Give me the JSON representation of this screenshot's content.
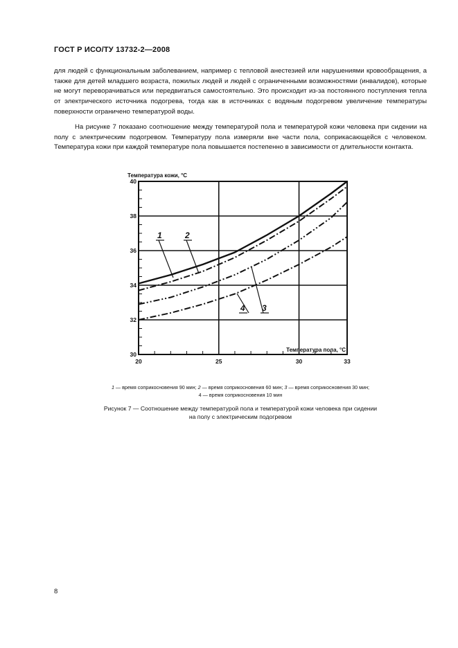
{
  "document": {
    "header": "ГОСТ Р ИСО/ТУ 13732-2—2008",
    "paragraph1": "для людей с функциональным заболеванием, например с тепловой анестезией или нарушениями кровообращения, а также для детей младшего возраста, пожилых людей и людей с ограниченными возможностями (инвалидов), которые не могут переворачиваться или передвигаться самостоятельно. Это происходит из-за постоянного поступления тепла от электрического источника подогрева, тогда как в источниках с водяным подогревом увеличение температуры поверхности ограничено температурой воды.",
    "paragraph2": "На рисунке 7 показано соотношение между температурой пола и температурой кожи человека при сидении на полу с электрическим подогревом. Температуру пола измеряли вне части пола, соприкасающейся с человеком. Температура кожи при каждой температуре пола повышается постепенно в зависимости от длительности контакта.",
    "legend": {
      "item1_num": "1",
      "item1_text": " — время соприкосновения 90 мин; ",
      "item2_num": "2",
      "item2_text": " — время соприкосновения 60 мин; ",
      "item3_num": "3",
      "item3_text": " — время соприкосновения 30 мин;",
      "item4_num": "4",
      "item4_text": " — время соприкосновения 10 мин"
    },
    "caption_line1": "Рисунок 7 — Соотношение между температурой пола и температурой кожи человека при сидении",
    "caption_line2": "на полу с электрическим подогревом",
    "page_number": "8"
  },
  "chart_data": {
    "type": "line",
    "ylabel": "Температура кожи, °С",
    "xlabel": "Температура пола, °С",
    "xlim": [
      20,
      33
    ],
    "ylim": [
      30,
      40
    ],
    "x_ticks": [
      20,
      25,
      30,
      33
    ],
    "y_ticks": [
      30,
      32,
      34,
      36,
      38,
      40
    ],
    "grid": true,
    "series": [
      {
        "name": "1",
        "style": "solid",
        "x": [
          20,
          22,
          24,
          26,
          28,
          30,
          32,
          33
        ],
        "y": [
          34.1,
          34.6,
          35.2,
          35.9,
          36.9,
          38.0,
          39.3,
          40.0
        ]
      },
      {
        "name": "2",
        "style": "dashdot",
        "x": [
          20,
          22,
          24,
          26,
          28,
          30,
          32,
          33
        ],
        "y": [
          33.7,
          34.2,
          34.8,
          35.6,
          36.6,
          37.7,
          39.0,
          39.7
        ]
      },
      {
        "name": "3",
        "style": "dashdotdot",
        "x": [
          20,
          22,
          24,
          26,
          28,
          30,
          32,
          33
        ],
        "y": [
          32.9,
          33.3,
          33.9,
          34.6,
          35.5,
          36.6,
          37.9,
          38.8
        ]
      },
      {
        "name": "4",
        "style": "dashdot",
        "x": [
          20,
          22,
          24,
          26,
          28,
          30,
          32,
          33
        ],
        "y": [
          32.0,
          32.4,
          32.9,
          33.5,
          34.3,
          35.2,
          36.2,
          36.8
        ]
      }
    ]
  }
}
